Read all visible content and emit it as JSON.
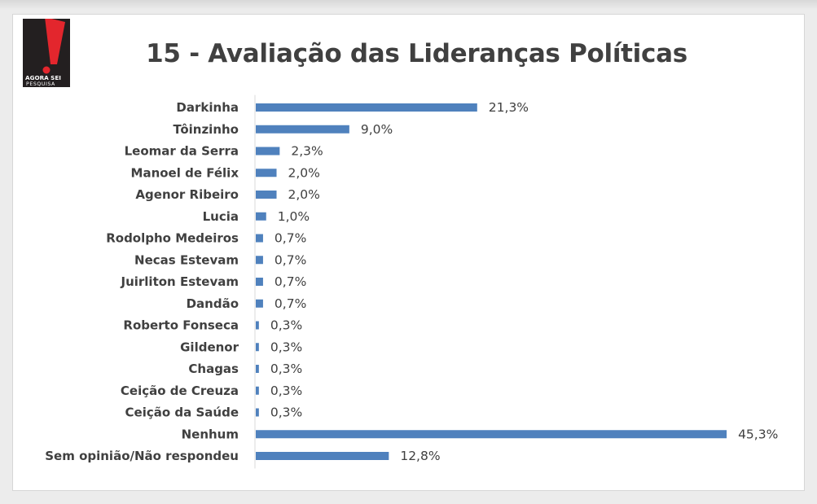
{
  "brand": {
    "logo_line1": "AGORA SEI",
    "logo_line2": "PESQUISA",
    "logo_colors": {
      "dark": "#231f20",
      "red": "#e3262d",
      "white": "#ffffff"
    }
  },
  "chart_data": {
    "type": "bar",
    "orientation": "horizontal",
    "title": "15 - Avaliação das Lideranças Políticas",
    "categories": [
      "Darkinha",
      "Tôinzinho",
      "Leomar da Serra",
      "Manoel de Félix",
      "Agenor Ribeiro",
      "Lucia",
      "Rodolpho Medeiros",
      "Necas Estevam",
      "Juirliton Estevam",
      "Dandão",
      "Roberto Fonseca",
      "Gildenor",
      "Chagas",
      "Ceição de Creuza",
      "Ceição da Saúde",
      "Nenhum",
      "Sem opinião/Não respondeu"
    ],
    "values": [
      21.3,
      9.0,
      2.3,
      2.0,
      2.0,
      1.0,
      0.7,
      0.7,
      0.7,
      0.7,
      0.3,
      0.3,
      0.3,
      0.3,
      0.3,
      45.3,
      12.8
    ],
    "value_labels": [
      "21,3%",
      "9,0%",
      "2,3%",
      "2,0%",
      "2,0%",
      "1,0%",
      "0,7%",
      "0,7%",
      "0,7%",
      "0,7%",
      "0,3%",
      "0,3%",
      "0,3%",
      "0,3%",
      "0,3%",
      "45,3%",
      "12,8%"
    ],
    "bar_color": "#4f81bd",
    "xlim": [
      0,
      46
    ],
    "grid": false,
    "legend": "none"
  }
}
